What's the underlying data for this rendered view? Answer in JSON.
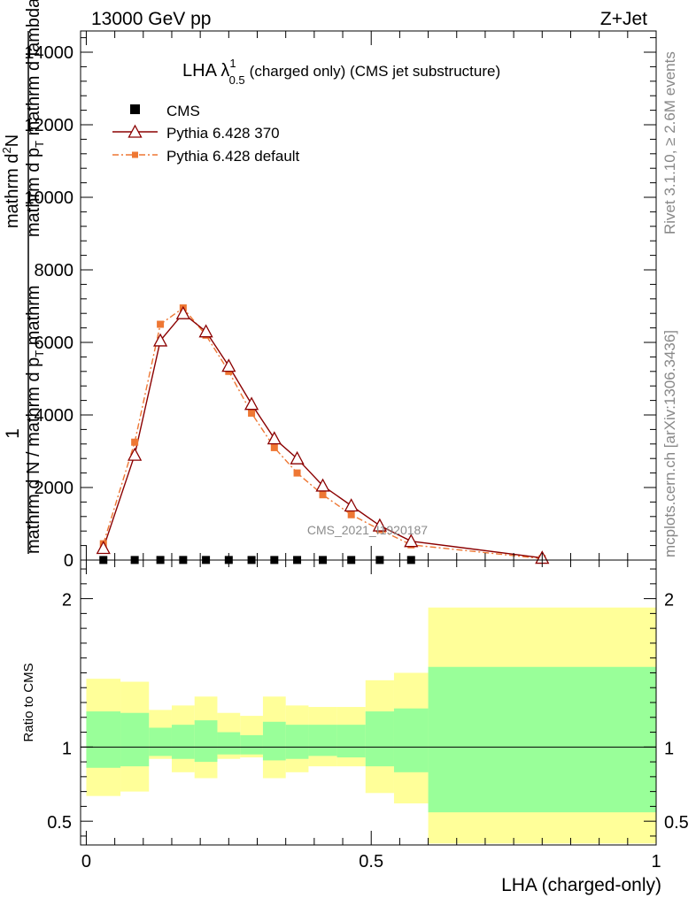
{
  "header": {
    "left": "13000 GeV pp",
    "right": "Z+Jet"
  },
  "side_labels": {
    "rivet": "Rivet 3.1.10, ≥ 2.6M events",
    "mcplots": "mcplots.cern.ch [arXiv:1306.3436]"
  },
  "chart_data": [
    {
      "type": "line",
      "title_main": "LHA λ",
      "title_sup": "1",
      "title_sub": "0.5",
      "title_rest": "(charged only) (CMS jet substructure)",
      "watermark": "CMS_2021_I1920187",
      "ylabel": {
        "num1": "1",
        "num2": "mathrm d N / mathrm d p",
        "num2_sub": "T",
        "num2_tail": " mathrm",
        "den1": "mathrm d",
        "den1_sup": "2",
        "den1_tail": "N",
        "den2": "mathrm d p",
        "den2_sub": "T",
        "den2_tail": " mathrm d lambda"
      },
      "xlabel": "LHA (charged-only)",
      "xlim": [
        -0.01,
        1.0
      ],
      "ylim": [
        0,
        14000
      ],
      "y_ticks": [
        {
          "v": 0,
          "label": "0"
        },
        {
          "v": 2000,
          "label": "2000"
        },
        {
          "v": 4000,
          "label": "4000"
        },
        {
          "v": 6000,
          "label": "6000"
        },
        {
          "v": 8000,
          "label": "8000"
        },
        {
          "v": 10000,
          "label": "10000"
        },
        {
          "v": 12000,
          "label": "12000"
        },
        {
          "v": 14000,
          "label": "14000"
        }
      ],
      "x_ticks": [
        {
          "v": 0,
          "label": "0"
        },
        {
          "v": 0.5,
          "label": "0.5"
        },
        {
          "v": 1,
          "label": "1"
        }
      ],
      "legend": {
        "position": "top-left",
        "entries": [
          {
            "name": "CMS",
            "marker": "square",
            "color": "#000000"
          },
          {
            "name": "Pythia 6.428 370",
            "marker": "triangle-open",
            "color": "#8b0000"
          },
          {
            "name": "Pythia 6.428 default",
            "marker": "square-small",
            "color": "#ee7733"
          }
        ]
      },
      "series": [
        {
          "name": "CMS",
          "color": "#000000",
          "x": [
            0.03,
            0.085,
            0.13,
            0.17,
            0.21,
            0.25,
            0.29,
            0.33,
            0.37,
            0.415,
            0.465,
            0.515,
            0.57
          ],
          "y": [
            2,
            2,
            3,
            3,
            3,
            3,
            2,
            2,
            2,
            2,
            2,
            2,
            2
          ]
        },
        {
          "name": "Pythia 6.428 370",
          "color": "#8b0000",
          "x": [
            0.03,
            0.085,
            0.13,
            0.17,
            0.21,
            0.25,
            0.29,
            0.33,
            0.37,
            0.415,
            0.465,
            0.515,
            0.57,
            0.8
          ],
          "y": [
            330,
            2900,
            6050,
            6800,
            6300,
            5350,
            4300,
            3350,
            2800,
            2050,
            1500,
            950,
            520,
            60
          ]
        },
        {
          "name": "Pythia 6.428 default",
          "color": "#ee7733",
          "x": [
            0.03,
            0.085,
            0.13,
            0.17,
            0.21,
            0.25,
            0.29,
            0.33,
            0.37,
            0.415,
            0.465,
            0.515,
            0.57,
            0.8
          ],
          "y": [
            450,
            3250,
            6500,
            6950,
            6200,
            5200,
            4050,
            3100,
            2400,
            1800,
            1250,
            840,
            420,
            40
          ]
        }
      ]
    },
    {
      "type": "area",
      "ylabel": "Ratio to CMS",
      "xlabel": "LHA (charged-only)",
      "xlim": [
        -0.01,
        1.0
      ],
      "ylim": [
        0.34,
        2.26
      ],
      "y_ticks": [
        {
          "v": 0.5,
          "label": "0.5"
        },
        {
          "v": 1,
          "label": "1"
        },
        {
          "v": 2,
          "label": "2"
        }
      ],
      "x_ticks": [
        {
          "v": 0,
          "label": "0"
        },
        {
          "v": 0.5,
          "label": "0.5"
        },
        {
          "v": 1,
          "label": "1"
        }
      ],
      "reference_line": 1.0,
      "bands": [
        {
          "x0": 0.0,
          "x1": 0.06,
          "stat_lo": 0.86,
          "stat_hi": 1.24,
          "tot_lo": 0.67,
          "tot_hi": 1.46
        },
        {
          "x0": 0.06,
          "x1": 0.11,
          "stat_lo": 0.87,
          "stat_hi": 1.23,
          "tot_lo": 0.7,
          "tot_hi": 1.44
        },
        {
          "x0": 0.11,
          "x1": 0.15,
          "stat_lo": 0.94,
          "stat_hi": 1.13,
          "tot_lo": 0.92,
          "tot_hi": 1.25
        },
        {
          "x0": 0.15,
          "x1": 0.19,
          "stat_lo": 0.92,
          "stat_hi": 1.15,
          "tot_lo": 0.83,
          "tot_hi": 1.28
        },
        {
          "x0": 0.19,
          "x1": 0.23,
          "stat_lo": 0.9,
          "stat_hi": 1.18,
          "tot_lo": 0.79,
          "tot_hi": 1.34
        },
        {
          "x0": 0.23,
          "x1": 0.27,
          "stat_lo": 0.95,
          "stat_hi": 1.1,
          "tot_lo": 0.92,
          "tot_hi": 1.23
        },
        {
          "x0": 0.27,
          "x1": 0.31,
          "stat_lo": 0.95,
          "stat_hi": 1.08,
          "tot_lo": 0.93,
          "tot_hi": 1.21
        },
        {
          "x0": 0.31,
          "x1": 0.35,
          "stat_lo": 0.91,
          "stat_hi": 1.17,
          "tot_lo": 0.79,
          "tot_hi": 1.34
        },
        {
          "x0": 0.35,
          "x1": 0.39,
          "stat_lo": 0.92,
          "stat_hi": 1.15,
          "tot_lo": 0.83,
          "tot_hi": 1.28
        },
        {
          "x0": 0.39,
          "x1": 0.44,
          "stat_lo": 0.94,
          "stat_hi": 1.15,
          "tot_lo": 0.87,
          "tot_hi": 1.27
        },
        {
          "x0": 0.44,
          "x1": 0.49,
          "stat_lo": 0.93,
          "stat_hi": 1.15,
          "tot_lo": 0.87,
          "tot_hi": 1.27
        },
        {
          "x0": 0.49,
          "x1": 0.54,
          "stat_lo": 0.87,
          "stat_hi": 1.24,
          "tot_lo": 0.69,
          "tot_hi": 1.45
        },
        {
          "x0": 0.54,
          "x1": 0.6,
          "stat_lo": 0.83,
          "stat_hi": 1.26,
          "tot_lo": 0.62,
          "tot_hi": 1.5
        },
        {
          "x0": 0.6,
          "x1": 1.0,
          "stat_lo": 0.56,
          "stat_hi": 1.54,
          "tot_lo": 0.35,
          "tot_hi": 1.94
        }
      ]
    }
  ]
}
